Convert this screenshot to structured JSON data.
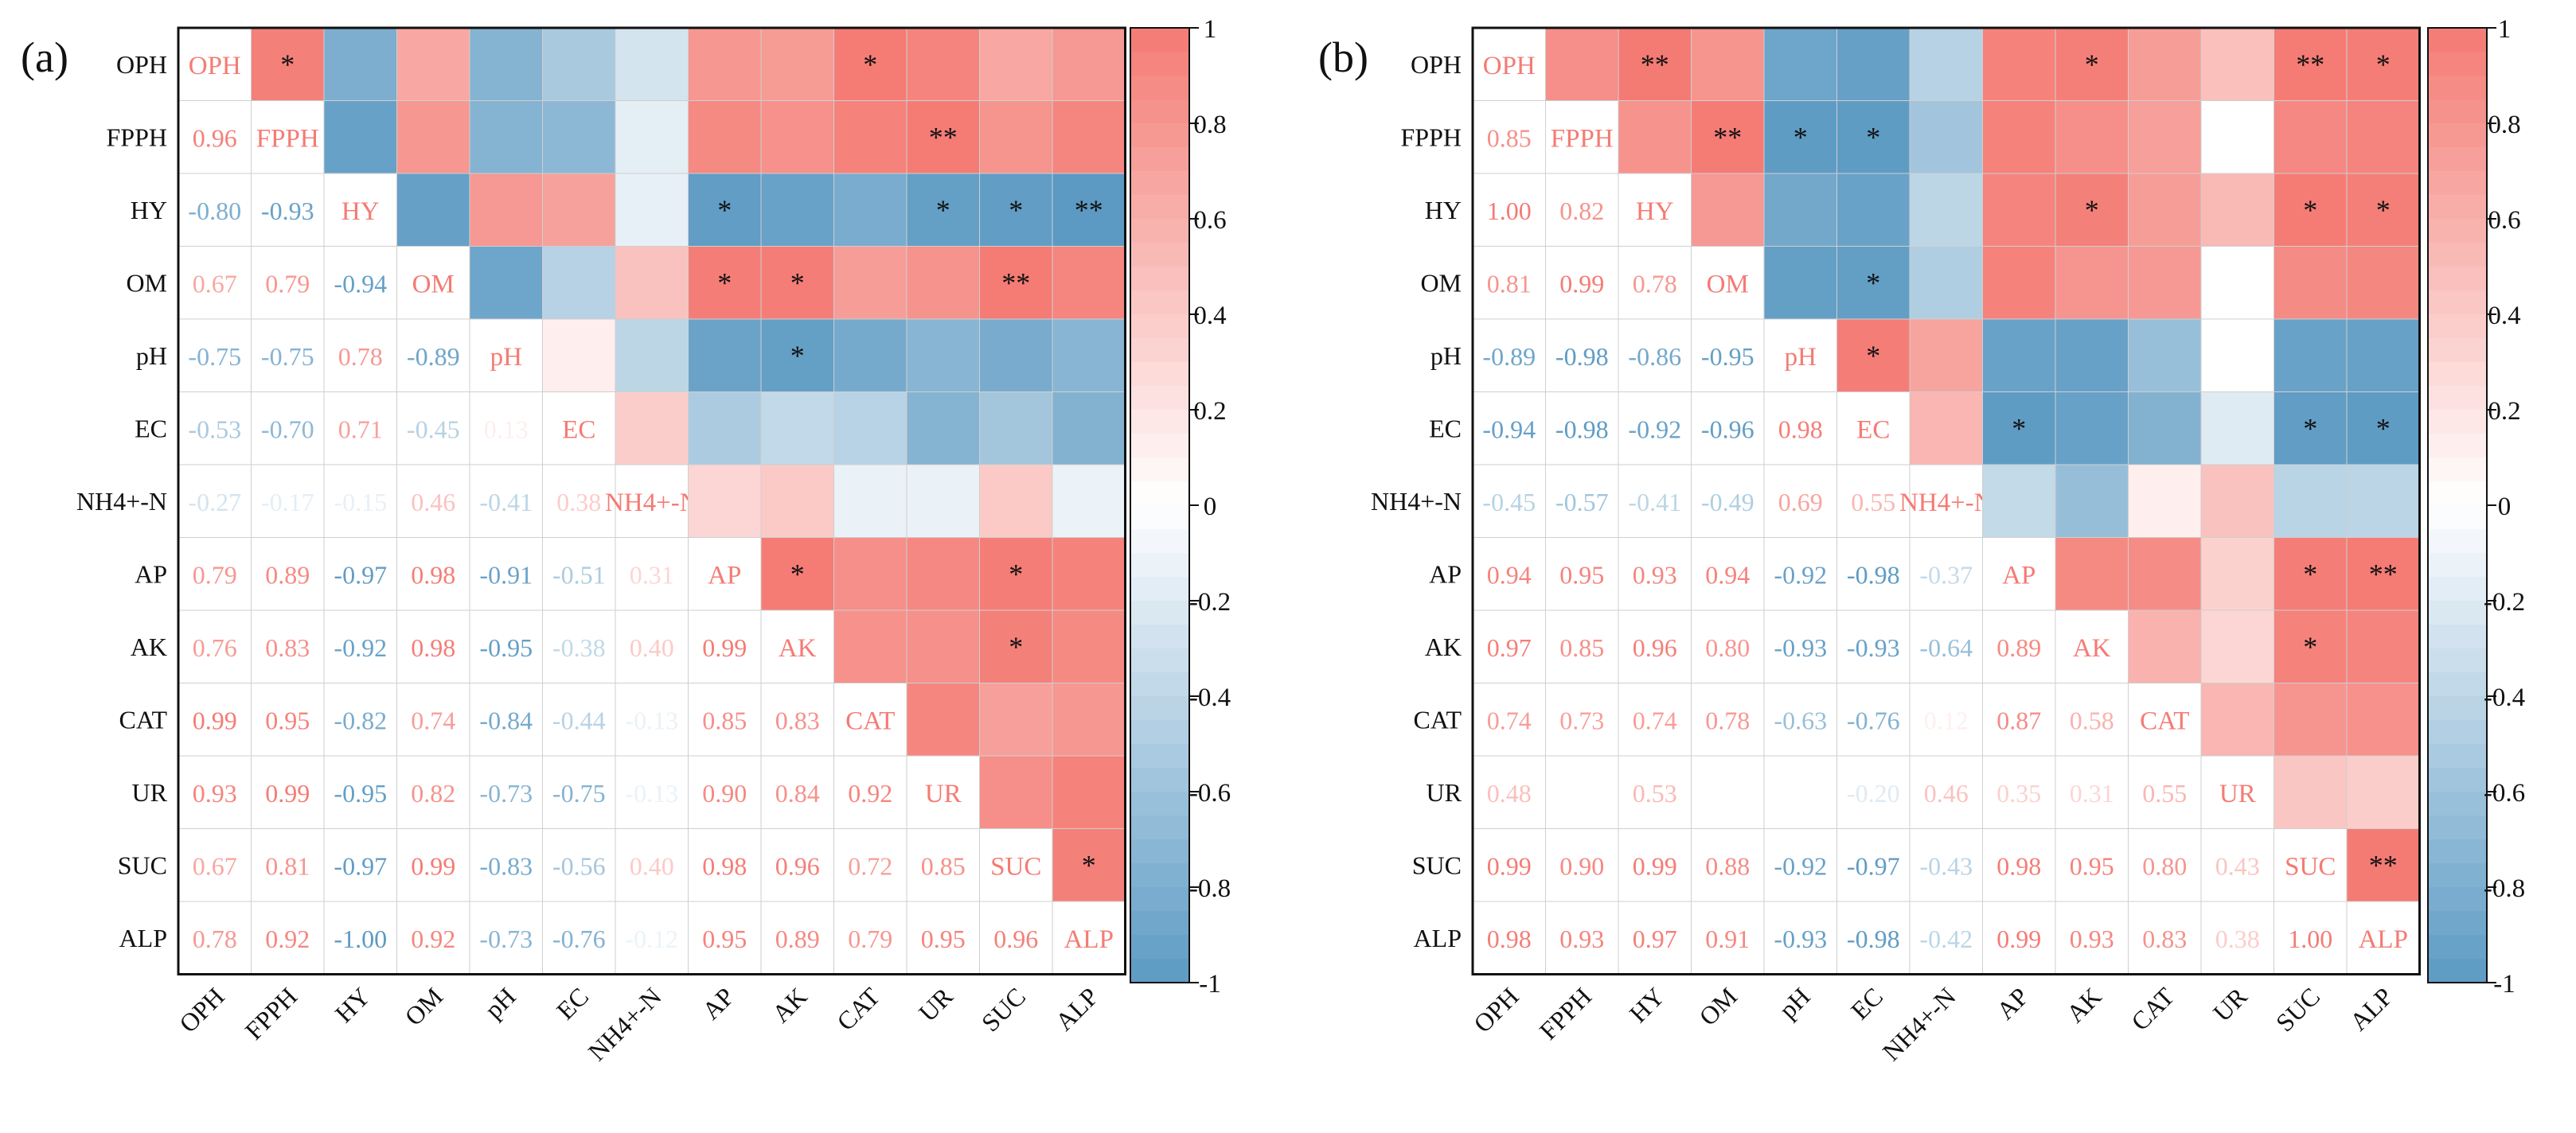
{
  "chart_data": [
    {
      "type": "heatmap",
      "panel_label": "(a)",
      "variables": [
        "OPH",
        "FPPH",
        "HY",
        "OM",
        "pH",
        "EC",
        "NH4+-N",
        "AP",
        "AK",
        "CAT",
        "UR",
        "SUC",
        "ALP"
      ],
      "lower_triangle_text": [
        [],
        [
          "0.96"
        ],
        [
          "-0.80",
          "-0.93"
        ],
        [
          "0.67",
          "0.79",
          "-0.94"
        ],
        [
          "-0.75",
          "-0.75",
          "0.78",
          "-0.89"
        ],
        [
          "-0.53",
          "-0.70",
          "0.71",
          "-0.45",
          "0.13"
        ],
        [
          "-0.27",
          "-0.17",
          "-0.15",
          "0.46",
          "-0.41",
          "0.38"
        ],
        [
          "0.79",
          "0.89",
          "-0.97",
          "0.98",
          "-0.91",
          "-0.51",
          "0.31"
        ],
        [
          "0.76",
          "0.83",
          "-0.92",
          "0.98",
          "-0.95",
          "-0.38",
          "0.40",
          "0.99"
        ],
        [
          "0.99",
          "0.95",
          "-0.82",
          "0.74",
          "-0.84",
          "-0.44",
          "-0.13",
          "0.85",
          "0.83"
        ],
        [
          "0.93",
          "0.99",
          "-0.95",
          "0.82",
          "-0.73",
          "-0.75",
          "-0.13",
          "0.90",
          "0.84",
          "0.92"
        ],
        [
          "0.67",
          "0.81",
          "-0.97",
          "0.99",
          "-0.83",
          "-0.56",
          "0.40",
          "0.98",
          "0.96",
          "0.72",
          "0.85"
        ],
        [
          "0.78",
          "0.92",
          "-1.00",
          "0.92",
          "-0.73",
          "-0.76",
          "-0.12",
          "0.95",
          "0.89",
          "0.79",
          "0.95",
          "0.96"
        ]
      ],
      "significance_upper": {
        "OPH": [
          "",
          "*",
          "",
          "",
          "",
          "",
          "",
          "",
          "",
          "*",
          "",
          "",
          ""
        ],
        "FPPH": [
          "",
          "",
          "",
          "",
          "",
          "",
          "",
          "",
          "",
          "",
          "**",
          "",
          ""
        ],
        "HY": [
          "",
          "",
          "",
          "",
          "",
          "",
          "",
          "*",
          "",
          "",
          "*",
          "*",
          "**"
        ],
        "OM": [
          "",
          "",
          "",
          "",
          "",
          "",
          "",
          "*",
          "*",
          "",
          "",
          "**",
          ""
        ],
        "pH": [
          "",
          "",
          "",
          "",
          "",
          "",
          "",
          "",
          "*",
          "",
          "",
          "",
          ""
        ],
        "AP": [
          "",
          "",
          "",
          "",
          "",
          "",
          "",
          "",
          "*",
          "",
          "",
          "*",
          ""
        ],
        "AK": [
          "",
          "",
          "",
          "",
          "",
          "",
          "",
          "",
          "",
          "",
          "",
          "*",
          ""
        ],
        "SUC": [
          "",
          "",
          "",
          "",
          "",
          "",
          "",
          "",
          "",
          "",
          "",
          "",
          "*"
        ]
      },
      "colorbar": {
        "min": -1,
        "max": 1,
        "ticks": [
          "1",
          "0.8",
          "0.6",
          "0.4",
          "0.2",
          "0",
          "-0.2",
          "-0.4",
          "-0.6",
          "-0.8",
          "-1"
        ]
      },
      "colors": {
        "positive": "#f47b74",
        "negative": "#5c9ac3",
        "neutral": "#ffffff"
      }
    },
    {
      "type": "heatmap",
      "panel_label": "(b)",
      "variables": [
        "OPH",
        "FPPH",
        "HY",
        "OM",
        "pH",
        "EC",
        "NH4+-N",
        "AP",
        "AK",
        "CAT",
        "UR",
        "SUC",
        "ALP"
      ],
      "lower_triangle_text": [
        [],
        [
          "0.85"
        ],
        [
          "1.00",
          "0.82"
        ],
        [
          "0.81",
          "0.99",
          "0.78"
        ],
        [
          "-0.89",
          "-0.98",
          "-0.86",
          "-0.95"
        ],
        [
          "-0.94",
          "-0.98",
          "-0.92",
          "-0.96",
          "0.98"
        ],
        [
          "-0.45",
          "-0.57",
          "-0.41",
          "-0.49",
          "0.69",
          "0.55"
        ],
        [
          "0.94",
          "0.95",
          "0.93",
          "0.94",
          "-0.92",
          "-0.98",
          "-0.37"
        ],
        [
          "0.97",
          "0.85",
          "0.96",
          "0.80",
          "-0.93",
          "-0.93",
          "-0.64",
          "0.89"
        ],
        [
          "0.74",
          "0.73",
          "0.74",
          "0.78",
          "-0.63",
          "-0.76",
          "0.12",
          "0.87",
          "0.58"
        ],
        [
          "0.48",
          "",
          "0.53",
          "",
          "",
          "-0.20",
          "0.46",
          "0.35",
          "0.31",
          "0.55"
        ],
        [
          "0.99",
          "0.90",
          "0.99",
          "0.88",
          "-0.92",
          "-0.97",
          "-0.43",
          "0.98",
          "0.95",
          "0.80",
          "0.43"
        ],
        [
          "0.98",
          "0.93",
          "0.97",
          "0.91",
          "-0.93",
          "-0.98",
          "-0.42",
          "0.99",
          "0.93",
          "0.83",
          "0.38",
          "1.00"
        ]
      ],
      "significance_upper": {
        "OPH": [
          "",
          "",
          "**",
          "",
          "",
          "",
          "",
          "",
          "*",
          "",
          "",
          "**",
          "*"
        ],
        "FPPH": [
          "",
          "",
          "",
          "**",
          "*",
          "*",
          "",
          "",
          "",
          "",
          "",
          "",
          ""
        ],
        "HY": [
          "",
          "",
          "",
          "",
          "",
          "",
          "",
          "",
          "*",
          "",
          "",
          "*",
          "*"
        ],
        "OM": [
          "",
          "",
          "",
          "",
          "",
          "*",
          "",
          "",
          "",
          "",
          "",
          "",
          ""
        ],
        "pH": [
          "",
          "",
          "",
          "",
          "",
          "*",
          "",
          "",
          "",
          "",
          "",
          "",
          ""
        ],
        "EC": [
          "",
          "",
          "",
          "",
          "",
          "",
          "",
          "*",
          "",
          "",
          "",
          "*",
          "*"
        ],
        "AP": [
          "",
          "",
          "",
          "",
          "",
          "",
          "",
          "",
          "",
          "",
          "",
          "*",
          "**"
        ],
        "AK": [
          "",
          "",
          "",
          "",
          "",
          "",
          "",
          "",
          "",
          "",
          "",
          "*",
          ""
        ],
        "SUC": [
          "",
          "",
          "",
          "",
          "",
          "",
          "",
          "",
          "",
          "",
          "",
          "",
          "**"
        ]
      },
      "colorbar": {
        "min": -1,
        "max": 1,
        "ticks": [
          "1",
          "0.8",
          "0.6",
          "0.4",
          "0.2",
          "0",
          "-0.2",
          "-0.4",
          "-0.6",
          "-0.8",
          "-1"
        ]
      },
      "colors": {
        "positive": "#f47b74",
        "negative": "#5c9ac3",
        "neutral": "#ffffff"
      }
    }
  ]
}
